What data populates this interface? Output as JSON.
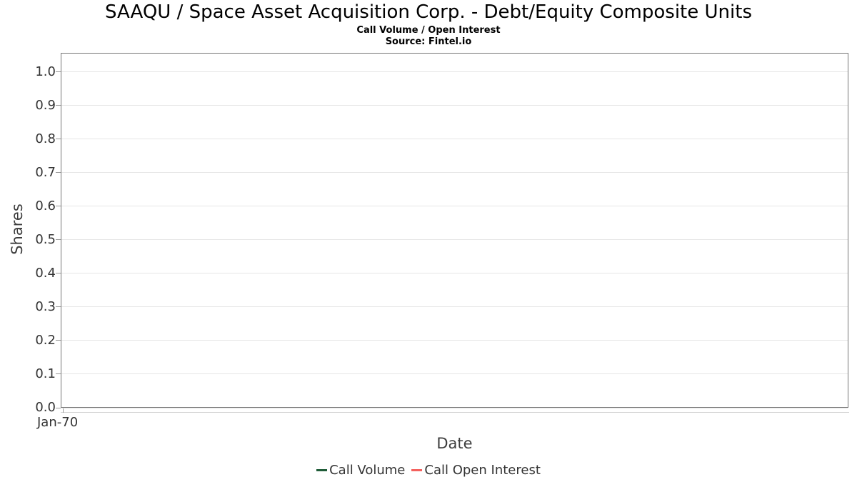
{
  "chart_data": {
    "type": "line",
    "title": "SAAQU / Space Asset Acquisition Corp. - Debt/Equity Composite Units",
    "subtitle": "Call Volume / Open Interest",
    "source": "Source: Fintel.io",
    "xlabel": "Date",
    "ylabel": "Shares",
    "x_tick_labels": [
      "Jan-70"
    ],
    "y_tick_labels": [
      "1.0",
      "0.9",
      "0.8",
      "0.7",
      "0.6",
      "0.5",
      "0.4",
      "0.3",
      "0.2",
      "0.1",
      "0.0"
    ],
    "ylim": [
      0.0,
      1.05
    ],
    "grid": "horizontal",
    "legend_position": "bottom",
    "series": [
      {
        "name": "Call Volume",
        "color": "#1f5c38",
        "x": [],
        "values": []
      },
      {
        "name": "Call Open Interest",
        "color": "#f4615e",
        "x": [],
        "values": []
      }
    ]
  },
  "colors": {
    "plot_border": "#767676",
    "gridline": "#e6e6e6",
    "tick_mark": "#9a9a9a",
    "x_axis_line": "#d2d2d2",
    "tick_label_text": "#333333",
    "axis_title_text": "#3c3c3c",
    "legend_text": "#333333",
    "title_text": "#000000"
  }
}
